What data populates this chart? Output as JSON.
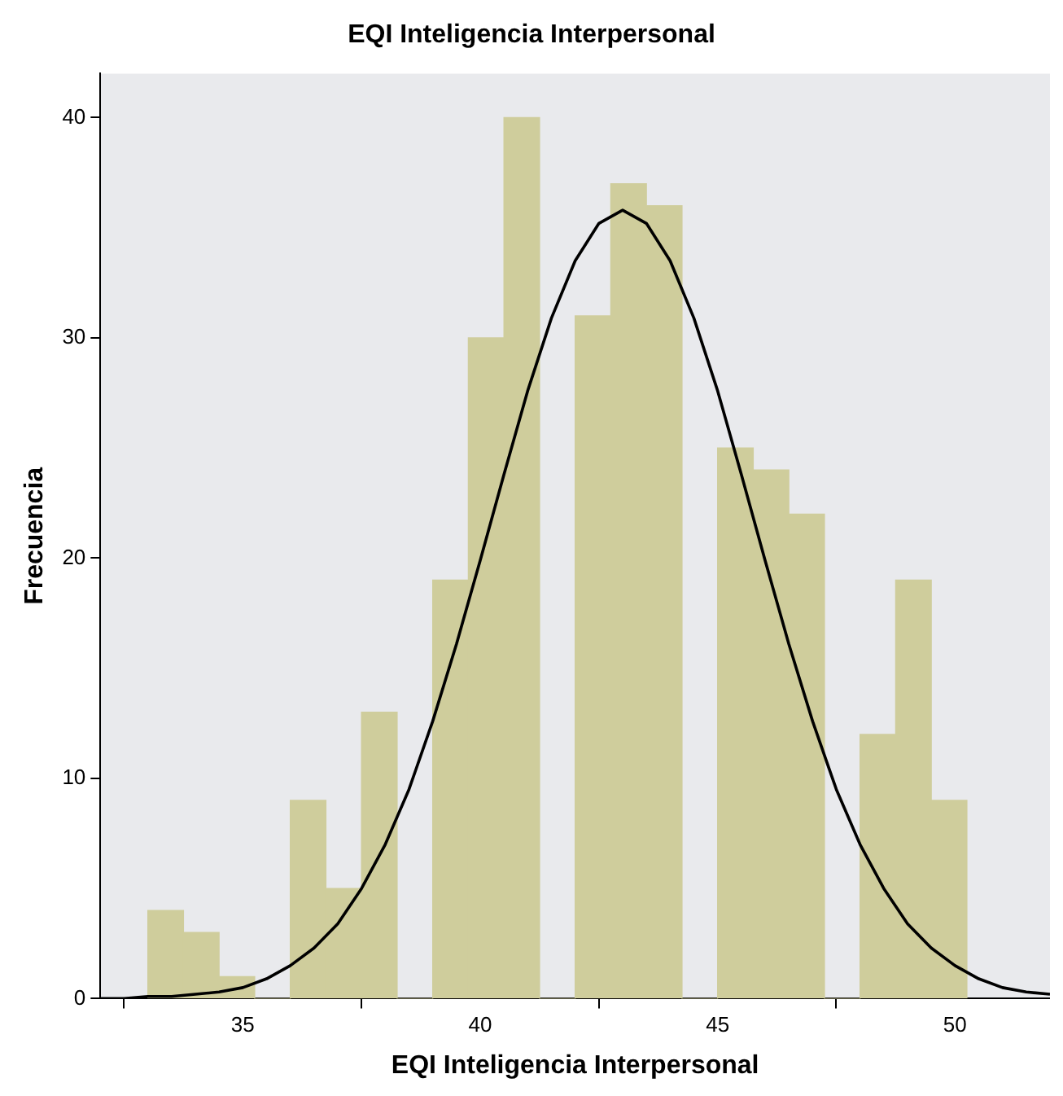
{
  "chart_data": {
    "type": "histogram",
    "title": "EQI Inteligencia Interpersonal",
    "xlabel": "EQI Inteligencia Interpersonal",
    "ylabel": "Frecuencia",
    "bins": [
      33,
      33.75,
      34.5,
      35.25,
      36,
      36.75,
      37.5,
      38.25,
      39,
      39.75,
      40.5,
      41.25,
      42,
      42.75,
      43.5,
      44.25,
      45,
      45.75,
      46.5,
      47.25,
      48,
      48.75,
      49.5,
      50.25
    ],
    "values": [
      4,
      3,
      1,
      0,
      9,
      5,
      13,
      0,
      19,
      30,
      40,
      0,
      31,
      37,
      36,
      0,
      25,
      24,
      22,
      0,
      12,
      19,
      9
    ],
    "color": "#cfcd9c",
    "series": [
      {
        "type": "line",
        "color": "#000000",
        "x": [
          32,
          32.5,
          33,
          33.5,
          34,
          34.5,
          35,
          35.5,
          36,
          36.5,
          37,
          37.5,
          38,
          38.5,
          39,
          39.5,
          40,
          40.5,
          41,
          41.5,
          42,
          42.5,
          43,
          43.5,
          44,
          44.5,
          45,
          45.5,
          46,
          46.5,
          47,
          47.5,
          48,
          48.5,
          49,
          49.5,
          50,
          50.5,
          51,
          51.5,
          52
        ],
        "values": [
          0,
          0,
          0.1,
          0.1,
          0.2,
          0.3,
          0.5,
          0.9,
          1.5,
          2.3,
          3.4,
          5,
          7,
          9.5,
          12.6,
          16.1,
          19.9,
          23.8,
          27.6,
          30.9,
          33.5,
          35.2,
          35.8,
          35.2,
          33.5,
          30.9,
          27.6,
          23.8,
          19.9,
          16.1,
          12.6,
          9.5,
          7,
          5,
          3.4,
          2.3,
          1.5,
          0.9,
          0.5,
          0.3,
          0.2
        ]
      }
    ],
    "xlim": [
      32,
      52
    ],
    "xticks": [
      35,
      40,
      45,
      50
    ],
    "ylim": [
      0,
      42
    ],
    "yticks": [
      0,
      10,
      20,
      30,
      40
    ],
    "grid": false,
    "legend": false
  }
}
